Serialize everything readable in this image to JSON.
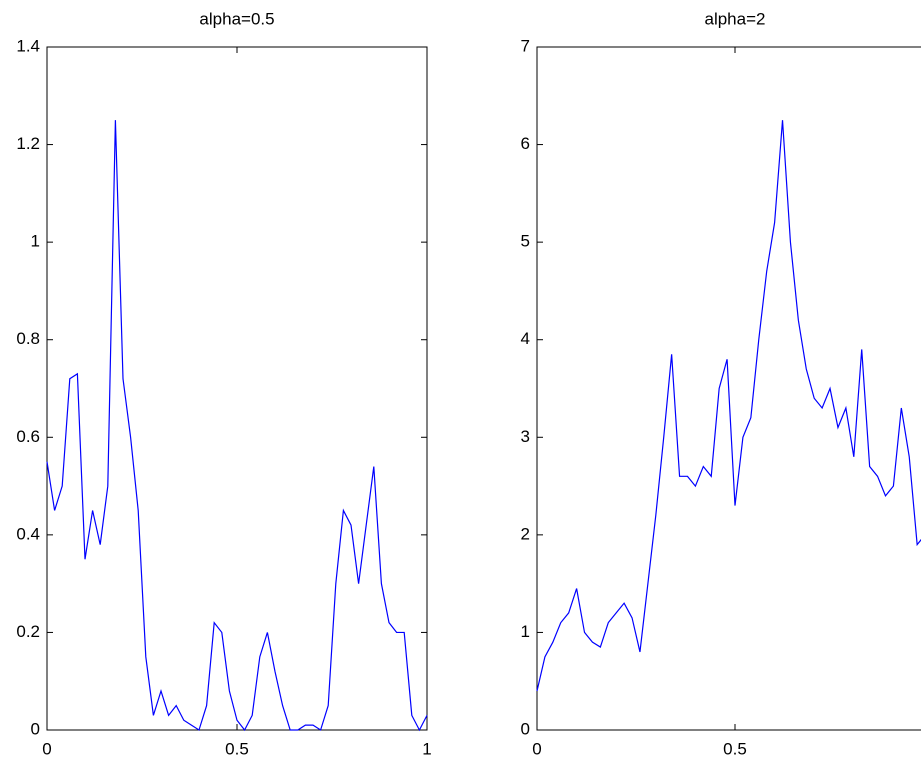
{
  "chart_data": [
    {
      "type": "line",
      "title": "alpha=0.5",
      "color": "#0000ff",
      "x": [
        0,
        0.02,
        0.04,
        0.06,
        0.08,
        0.1,
        0.12,
        0.14,
        0.16,
        0.18,
        0.2,
        0.22,
        0.24,
        0.26,
        0.28,
        0.3,
        0.32,
        0.34,
        0.36,
        0.38,
        0.4,
        0.42,
        0.44,
        0.46,
        0.48,
        0.5,
        0.52,
        0.54,
        0.56,
        0.58,
        0.6,
        0.62,
        0.64,
        0.66,
        0.68,
        0.7,
        0.72,
        0.74,
        0.76,
        0.78,
        0.8,
        0.82,
        0.84,
        0.86,
        0.88,
        0.9,
        0.92,
        0.94,
        0.96,
        0.98,
        1
      ],
      "values": [
        0.55,
        0.45,
        0.5,
        0.72,
        0.73,
        0.35,
        0.45,
        0.38,
        0.5,
        1.25,
        0.72,
        0.6,
        0.45,
        0.15,
        0.03,
        0.08,
        0.03,
        0.05,
        0.02,
        0.01,
        0,
        0.05,
        0.22,
        0.2,
        0.08,
        0.02,
        0,
        0.03,
        0.15,
        0.2,
        0.12,
        0.05,
        0,
        0,
        0.01,
        0.01,
        0,
        0.05,
        0.3,
        0.45,
        0.42,
        0.3,
        0.42,
        0.54,
        0.3,
        0.22,
        0.2,
        0.2,
        0.03,
        0,
        0.03
      ],
      "xlim": [
        0,
        1
      ],
      "xticks": [
        0,
        0.5,
        1
      ],
      "ylim": [
        0,
        1.4
      ],
      "yticks": [
        0,
        0.2,
        0.4,
        0.6,
        0.8,
        1,
        1.2,
        1.4
      ]
    },
    {
      "type": "line",
      "title": "alpha=2",
      "color": "#0000ff",
      "x": [
        0,
        0.02,
        0.04,
        0.06,
        0.08,
        0.1,
        0.12,
        0.14,
        0.16,
        0.18,
        0.2,
        0.22,
        0.24,
        0.26,
        0.28,
        0.3,
        0.32,
        0.34,
        0.36,
        0.38,
        0.4,
        0.42,
        0.44,
        0.46,
        0.48,
        0.5,
        0.52,
        0.54,
        0.56,
        0.58,
        0.6,
        0.62,
        0.64,
        0.66,
        0.68,
        0.7,
        0.72,
        0.74,
        0.76,
        0.78,
        0.8,
        0.82,
        0.84,
        0.86,
        0.88,
        0.9,
        0.92,
        0.94,
        0.96,
        0.98,
        1
      ],
      "values": [
        0.4,
        0.75,
        0.9,
        1.1,
        1.2,
        1.45,
        1.0,
        0.9,
        0.85,
        1.1,
        1.2,
        1.3,
        1.15,
        0.8,
        1.5,
        2.2,
        3.0,
        3.85,
        2.6,
        2.6,
        2.5,
        2.7,
        2.6,
        3.5,
        3.8,
        2.3,
        3.0,
        3.2,
        4.0,
        4.7,
        5.2,
        6.25,
        5.0,
        4.2,
        3.7,
        3.4,
        3.3,
        3.5,
        3.1,
        3.3,
        2.8,
        3.9,
        2.7,
        2.6,
        2.4,
        2.5,
        3.3,
        2.8,
        1.9,
        2.0,
        2.1
      ],
      "xlim": [
        0,
        1
      ],
      "xticks": [
        0,
        0.5,
        1
      ],
      "ylim": [
        0,
        7
      ],
      "yticks": [
        0,
        1,
        2,
        3,
        4,
        5,
        6,
        7
      ]
    }
  ]
}
